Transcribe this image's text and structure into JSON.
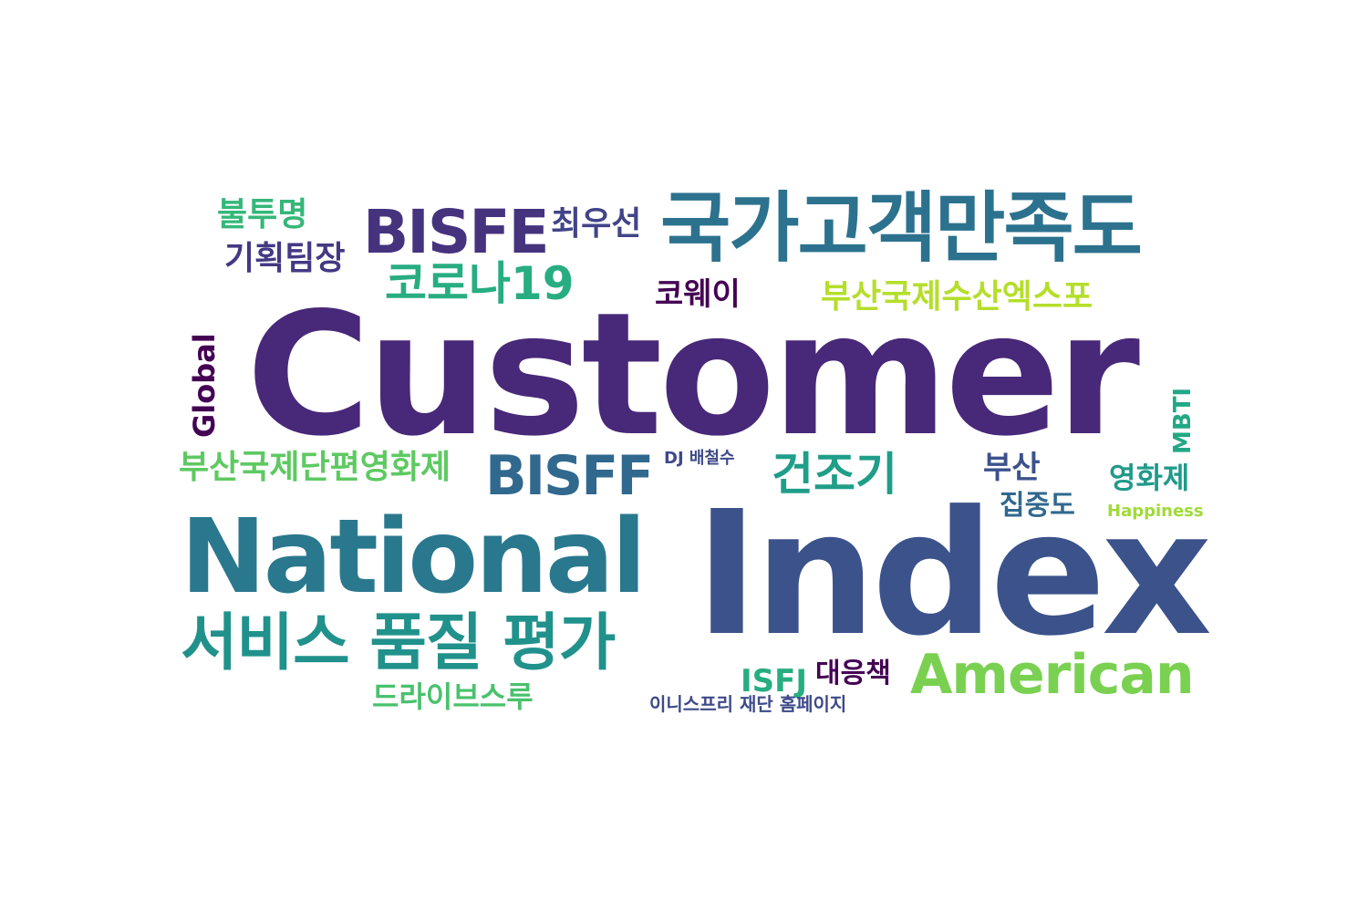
{
  "word_cloud": {
    "background": "#ffffff",
    "words": [
      {
        "id": "customer",
        "text": "Customer",
        "color": "#482878"
      },
      {
        "id": "index",
        "text": "Index",
        "color": "#3b528b"
      },
      {
        "id": "national",
        "text": "National",
        "color": "#2a788e"
      },
      {
        "id": "national-customer-satisfaction",
        "text": "국가고객만족도",
        "color": "#2c728e"
      },
      {
        "id": "service-quality-evaluation",
        "text": "서비스 품질 평가",
        "color": "#21918c"
      },
      {
        "id": "american",
        "text": "American",
        "color": "#7ad151"
      },
      {
        "id": "bisfe",
        "text": "BISFE",
        "color": "#46337e"
      },
      {
        "id": "bisff",
        "text": "BISFF",
        "color": "#31688e"
      },
      {
        "id": "corona19",
        "text": "코로나19",
        "color": "#27ad81"
      },
      {
        "id": "busan-intl-seafood-expo",
        "text": "부산국제수산엑스포",
        "color": "#b5de2b"
      },
      {
        "id": "busan-intl-short-film-festival",
        "text": "부산국제단편영화제",
        "color": "#5ec962"
      },
      {
        "id": "dryer",
        "text": "건조기",
        "color": "#1f9e89"
      },
      {
        "id": "bultumyeong",
        "text": "불투명",
        "color": "#35b779"
      },
      {
        "id": "planning-team-leader",
        "text": "기획팀장",
        "color": "#443983"
      },
      {
        "id": "choi-wooseon",
        "text": "최우선",
        "color": "#414487"
      },
      {
        "id": "coway",
        "text": "코웨이",
        "color": "#440154"
      },
      {
        "id": "global",
        "text": "Global",
        "color": "#440154"
      },
      {
        "id": "mbti",
        "text": "MBTI",
        "color": "#22a884"
      },
      {
        "id": "dj-bae-cheolsu",
        "text": "DJ 배철수",
        "color": "#3e4a89"
      },
      {
        "id": "busan",
        "text": "부산",
        "color": "#3b528b"
      },
      {
        "id": "concentration",
        "text": "집중도",
        "color": "#31688e"
      },
      {
        "id": "film-festival",
        "text": "영화제",
        "color": "#1f9a8a"
      },
      {
        "id": "happiness",
        "text": "Happiness",
        "color": "#a0da39"
      },
      {
        "id": "isfj",
        "text": "ISFJ",
        "color": "#26ad81"
      },
      {
        "id": "countermeasure",
        "text": "대응책",
        "color": "#440154"
      },
      {
        "id": "drivethrough",
        "text": "드라이브스루",
        "color": "#4ac16d"
      },
      {
        "id": "innisfree-foundation-homepage",
        "text": "이니스프리 재단 홈페이지",
        "color": "#3e4a89"
      }
    ]
  }
}
